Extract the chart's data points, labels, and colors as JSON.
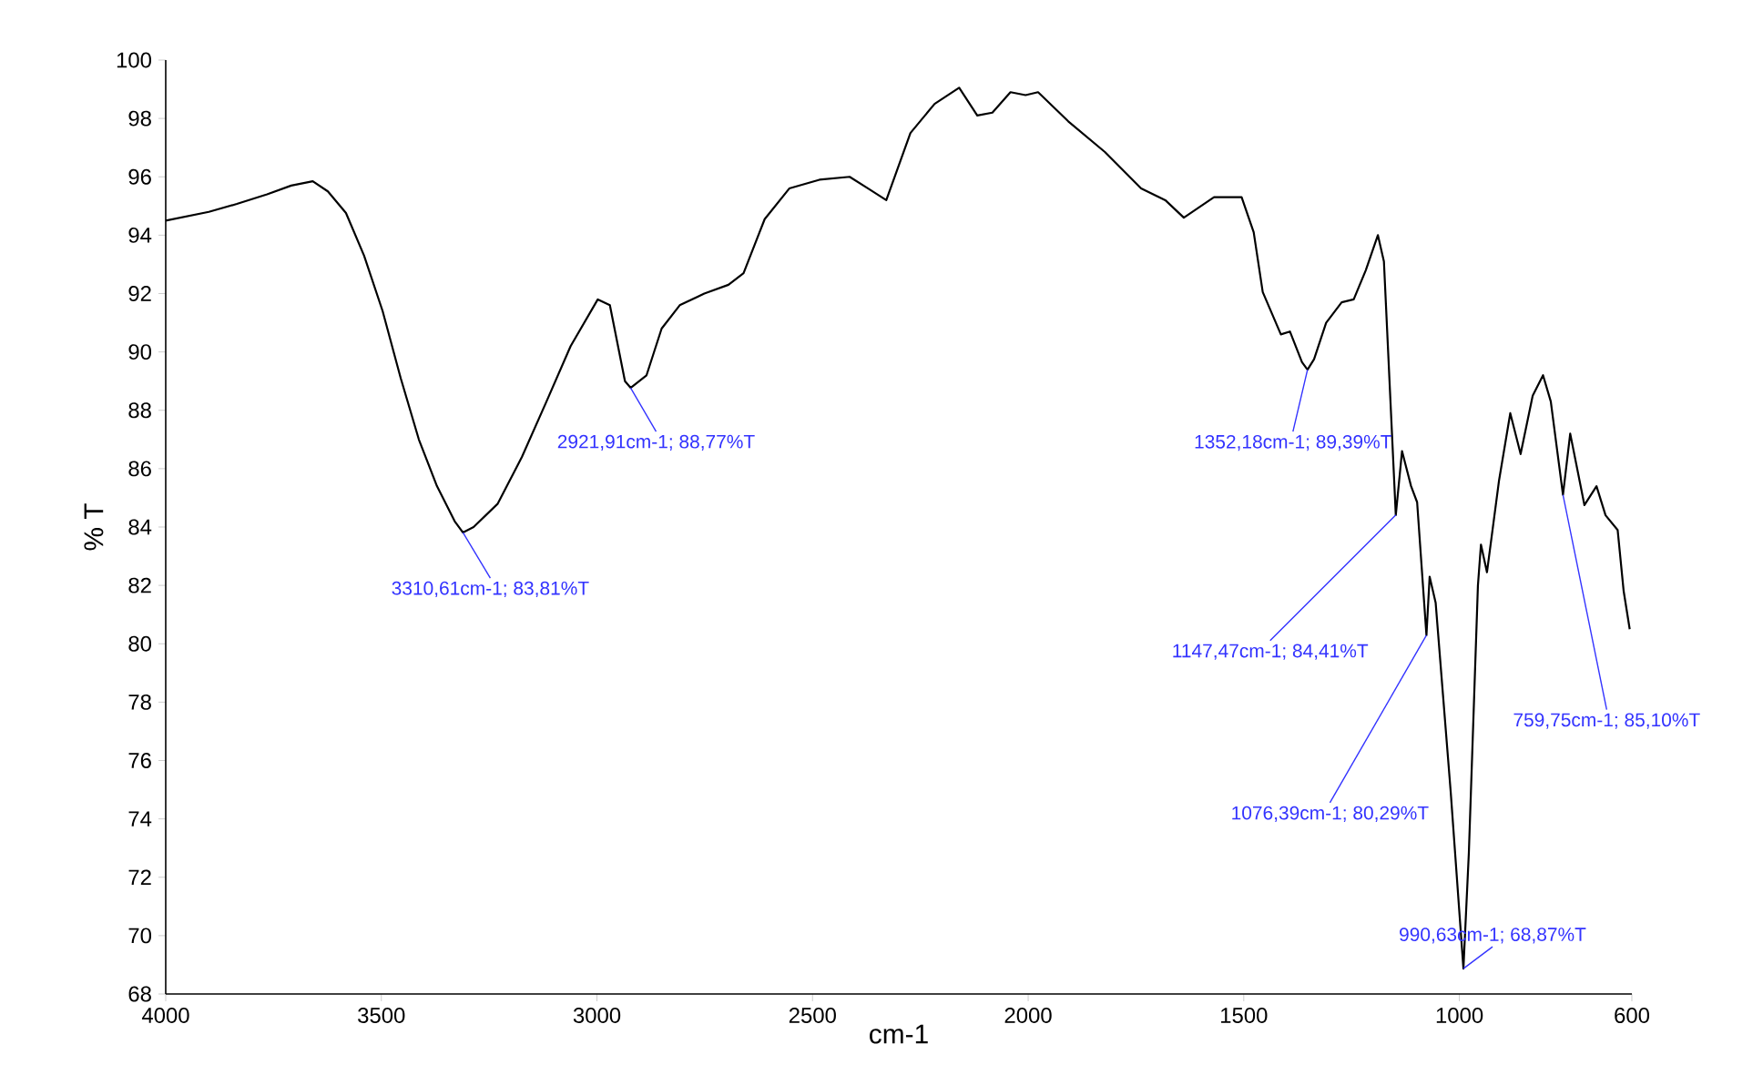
{
  "chart_data": {
    "type": "line",
    "xlabel": "cm-1",
    "ylabel": "% T",
    "xlim": [
      4000,
      600
    ],
    "ylim": [
      68,
      100
    ],
    "xticks": [
      4000,
      3500,
      3000,
      2500,
      2000,
      1500,
      1000,
      600
    ],
    "yticks": [
      68,
      70,
      72,
      74,
      76,
      78,
      80,
      82,
      84,
      86,
      88,
      90,
      92,
      94,
      96,
      98,
      100
    ],
    "grid": false,
    "marker": "none",
    "line_style": "solid",
    "series": [
      {
        "color": "#000000",
        "x": [
          4000,
          3900,
          3835,
          3765,
          3709,
          3659,
          3624,
          3582,
          3540,
          3497,
          3455,
          3413,
          3371,
          3330,
          3310.61,
          3286,
          3230,
          3174,
          3117,
          3061,
          2998,
          2970,
          2935,
          2921.91,
          2885,
          2850,
          2808,
          2751,
          2695,
          2660,
          2611,
          2554,
          2484,
          2414,
          2371,
          2329,
          2273,
          2217,
          2160,
          2118,
          2083,
          2041,
          2006,
          1977,
          1907,
          1822,
          1738,
          1682,
          1639,
          1569,
          1505,
          1477,
          1456,
          1414,
          1393,
          1365,
          1352.18,
          1337,
          1309,
          1273,
          1245,
          1217,
          1189,
          1175,
          1147.47,
          1133,
          1112,
          1098,
          1076.39,
          1069,
          1055,
          1020,
          990.63,
          978,
          957,
          950,
          936,
          908,
          882,
          858,
          830,
          806,
          788,
          759.75,
          743,
          710,
          682,
          661,
          633,
          619,
          605
        ],
        "values": [
          94.5,
          94.8,
          95.07,
          95.4,
          95.7,
          95.85,
          95.5,
          94.76,
          93.3,
          91.4,
          89.1,
          87.0,
          85.4,
          84.2,
          83.81,
          84.0,
          84.8,
          86.4,
          88.3,
          90.2,
          91.8,
          91.6,
          89.0,
          88.77,
          89.2,
          90.8,
          91.6,
          92.0,
          92.3,
          92.7,
          94.55,
          95.6,
          95.9,
          96.0,
          95.6,
          95.2,
          97.5,
          98.5,
          99.05,
          98.1,
          98.2,
          98.9,
          98.8,
          98.9,
          97.9,
          96.85,
          95.6,
          95.2,
          94.6,
          95.3,
          95.3,
          94.1,
          92.05,
          90.6,
          90.7,
          89.65,
          89.39,
          89.75,
          91.0,
          91.7,
          91.8,
          92.8,
          94.0,
          93.1,
          84.41,
          86.6,
          85.4,
          84.85,
          80.29,
          82.3,
          81.4,
          74.9,
          68.87,
          72.85,
          82.0,
          83.4,
          82.45,
          85.6,
          87.9,
          86.5,
          88.5,
          89.2,
          88.3,
          85.1,
          87.2,
          84.75,
          85.4,
          84.4,
          83.9,
          81.8,
          80.5
        ]
      }
    ],
    "annotations": [
      {
        "text": "3310,61cm-1; 83,81%T",
        "x": 3310.61,
        "y": 83.81
      },
      {
        "text": "2921,91cm-1; 88,77%T",
        "x": 2921.91,
        "y": 88.77
      },
      {
        "text": "1352,18cm-1; 89,39%T",
        "x": 1352.18,
        "y": 89.39
      },
      {
        "text": "1147,47cm-1; 84,41%T",
        "x": 1147.47,
        "y": 84.41
      },
      {
        "text": "1076,39cm-1; 80,29%T",
        "x": 1076.39,
        "y": 80.29
      },
      {
        "text": "990,63cm-1; 68,87%T",
        "x": 990.63,
        "y": 68.87
      },
      {
        "text": "759,75cm-1; 85,10%T",
        "x": 759.75,
        "y": 85.1
      }
    ]
  }
}
